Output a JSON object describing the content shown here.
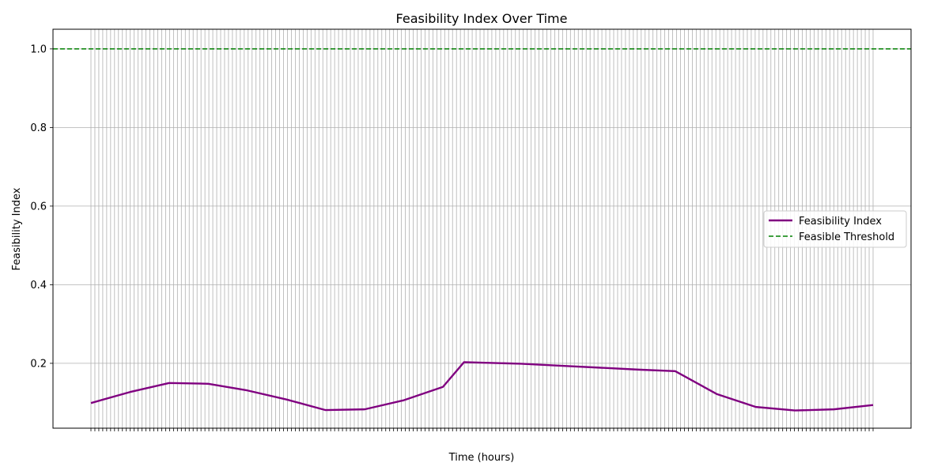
{
  "chart_data": {
    "type": "line",
    "title": "Feasibility Index Over Time",
    "xlabel": "Time (hours)",
    "ylabel": "Feasibility Index",
    "xlim": [
      0,
      1
    ],
    "ylim": [
      0.035,
      1.05
    ],
    "yticks": [
      0.2,
      0.4,
      0.6,
      0.8,
      1.0
    ],
    "ytick_labels": [
      "0.2",
      "0.4",
      "0.6",
      "0.8",
      "1.0"
    ],
    "grid": true,
    "legend_position": "center-right",
    "x_tick_count": 200,
    "series": [
      {
        "name": "Feasibility Index",
        "color": "#800080",
        "style": "solid",
        "x": [
          0.0,
          0.05,
          0.1,
          0.15,
          0.2,
          0.25,
          0.3,
          0.35,
          0.4,
          0.45,
          0.477,
          0.55,
          0.6,
          0.65,
          0.7,
          0.747,
          0.8,
          0.85,
          0.9,
          0.95,
          1.0
        ],
        "values": [
          0.099,
          0.127,
          0.15,
          0.148,
          0.131,
          0.108,
          0.081,
          0.083,
          0.106,
          0.14,
          0.203,
          0.199,
          0.194,
          0.189,
          0.184,
          0.18,
          0.122,
          0.089,
          0.08,
          0.083,
          0.094
        ]
      },
      {
        "name": "Feasible Threshold",
        "color": "#008000",
        "style": "dashed",
        "value": 1.0
      }
    ]
  }
}
